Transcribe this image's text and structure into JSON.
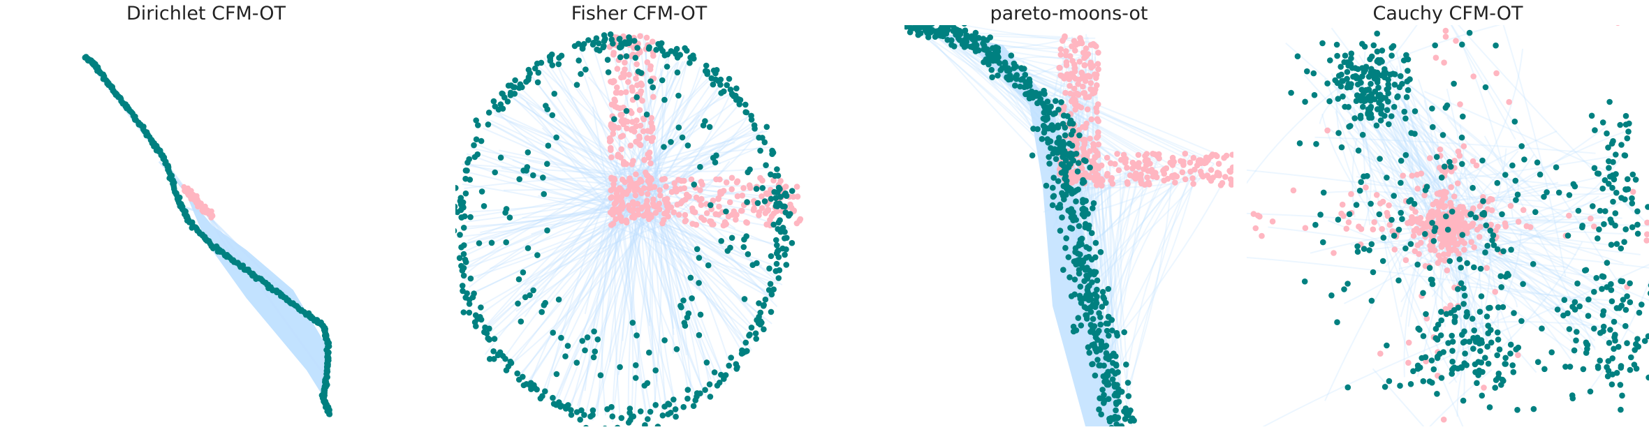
{
  "figure": {
    "colors": {
      "source": "#ffb6c1",
      "target": "#008080",
      "flow": "#bfe0ff"
    }
  },
  "chart_data": [
    {
      "type": "scatter",
      "title": "Dirichlet CFM-OT",
      "axes_visible": false,
      "xlim": [
        0,
        1
      ],
      "ylim": [
        0,
        1
      ],
      "series": [
        {
          "role": "flow",
          "values": [
            {
              "from": [
                0.45,
                0.58
              ],
              "to": [
                0.36,
                0.66
              ]
            },
            {
              "from": [
                0.5,
                0.53
              ],
              "to": [
                0.42,
                0.55
              ]
            },
            {
              "from": [
                0.48,
                0.56
              ],
              "to": [
                0.58,
                0.42
              ]
            },
            {
              "from": [
                0.5,
                0.53
              ],
              "to": [
                0.74,
                0.33
              ]
            },
            {
              "from": [
                0.47,
                0.57
              ],
              "to": [
                0.86,
                0.12
              ]
            },
            {
              "from": [
                0.44,
                0.59
              ],
              "to": [
                0.14,
                0.92
              ]
            }
          ]
        },
        {
          "role": "source",
          "segment": [
            [
              0.43,
              0.6
            ],
            [
              0.52,
              0.52
            ]
          ],
          "count": 60
        },
        {
          "role": "target",
          "curve": [
            [
              0.14,
              0.92
            ],
            [
              0.17,
              0.9
            ],
            [
              0.22,
              0.84
            ],
            [
              0.28,
              0.78
            ],
            [
              0.34,
              0.71
            ],
            [
              0.38,
              0.66
            ],
            [
              0.41,
              0.58
            ],
            [
              0.45,
              0.51
            ],
            [
              0.52,
              0.45
            ],
            [
              0.62,
              0.39
            ],
            [
              0.72,
              0.33
            ],
            [
              0.8,
              0.28
            ],
            [
              0.85,
              0.25
            ],
            [
              0.865,
              0.2
            ],
            [
              0.86,
              0.12
            ],
            [
              0.85,
              0.07
            ],
            [
              0.87,
              0.03
            ]
          ],
          "count": 420
        }
      ]
    },
    {
      "type": "scatter",
      "title": "Fisher CFM-OT",
      "axes_visible": false,
      "xlim": [
        0,
        1
      ],
      "ylim": [
        0,
        1
      ],
      "series": [
        {
          "role": "flow",
          "count": 260
        },
        {
          "role": "source",
          "region": "L-shape",
          "corner": [
            0.42,
            0.5
          ],
          "count": 420
        },
        {
          "role": "target",
          "region": "ring",
          "center": [
            0.52,
            0.5
          ],
          "count": 520
        }
      ]
    },
    {
      "type": "scatter",
      "title": "pareto-moons-ot",
      "axes_visible": false,
      "xlim": [
        0,
        1
      ],
      "ylim": [
        0,
        1
      ],
      "series": [
        {
          "role": "flow",
          "count": 200
        },
        {
          "role": "source",
          "region": "L-shape",
          "corner": [
            0.49,
            0.6
          ],
          "count": 380
        },
        {
          "role": "target",
          "region": "crescent",
          "count": 600
        }
      ]
    },
    {
      "type": "scatter",
      "title": "Cauchy CFM-OT",
      "axes_visible": false,
      "xlim": [
        0,
        1
      ],
      "ylim": [
        0,
        1
      ],
      "series": [
        {
          "role": "flow",
          "count": 220
        },
        {
          "role": "source",
          "region": "heavy-tailed blob",
          "center": [
            0.5,
            0.5
          ],
          "count": 420
        },
        {
          "role": "target",
          "region": "clusters",
          "count": 620
        }
      ]
    }
  ]
}
